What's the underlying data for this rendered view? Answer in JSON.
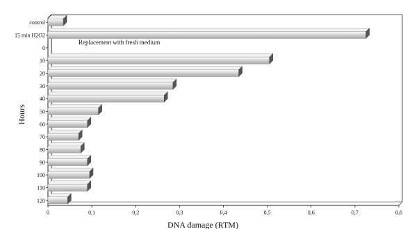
{
  "chart_data": {
    "type": "bar",
    "orientation": "horizontal",
    "style": "3d",
    "categories": [
      "control",
      "15 min H2O2",
      "0",
      "10",
      "20",
      "30",
      "40",
      "50",
      "60",
      "70",
      "80",
      "90",
      "100",
      "110",
      "120"
    ],
    "values": [
      0.035,
      0.725,
      null,
      0.505,
      0.435,
      0.285,
      0.265,
      0.115,
      0.09,
      0.07,
      0.075,
      0.09,
      0.095,
      0.09,
      0.045
    ],
    "xlabel": "DNA damage (RTM)",
    "ylabel": "Hours",
    "xlim": [
      0,
      0.8
    ],
    "xticks": [
      "0",
      "0,1",
      "0,2",
      "0,3",
      "0,4",
      "0,5",
      "0,6",
      "0,7",
      "0,8"
    ],
    "xtick_values": [
      0,
      0.1,
      0.2,
      0.3,
      0.4,
      0.5,
      0.6,
      0.7,
      0.8
    ],
    "annotation": "Replacement with fresh medium",
    "grid": false,
    "colors": {
      "bar_face": "#d4d4d4",
      "bar_top": "#f0f0f0",
      "bar_side": "#555555",
      "axis": "#222222"
    }
  }
}
